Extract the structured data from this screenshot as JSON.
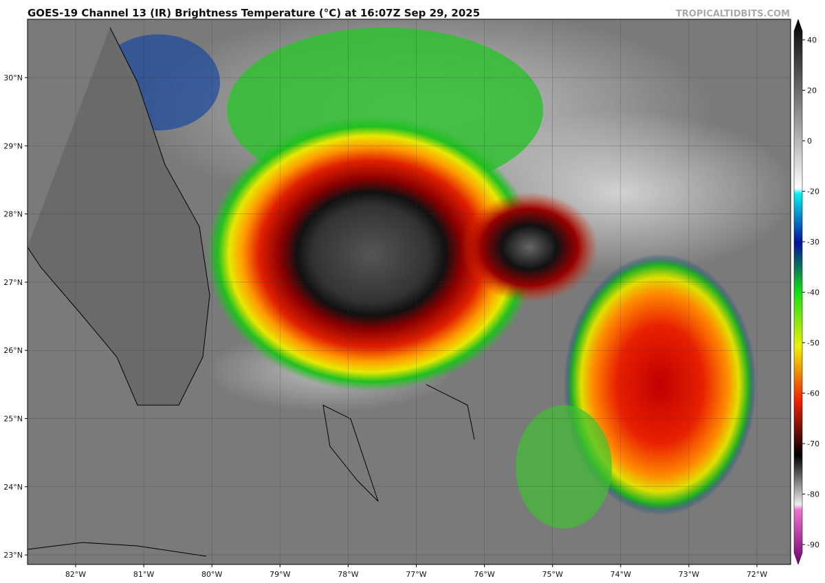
{
  "header": {
    "title": "GOES-19 Channel 13 (IR) Brightness Temperature (°C) at 16:07Z Sep 29, 2025",
    "source": "TROPICALTIDBITS.COM"
  },
  "map": {
    "lat_labels": [
      "30°N",
      "29°N",
      "28°N",
      "27°N",
      "26°N",
      "25°N",
      "24°N",
      "23°N"
    ],
    "lon_labels": [
      "82°W",
      "81°W",
      "80°W",
      "79°W",
      "78°W",
      "77°W",
      "76°W",
      "75°W",
      "74°W",
      "73°W",
      "72°W"
    ]
  },
  "colorbar": {
    "ticks": [
      40,
      20,
      0,
      -20,
      -30,
      -40,
      -50,
      -60,
      -70,
      -80,
      -90
    ]
  }
}
